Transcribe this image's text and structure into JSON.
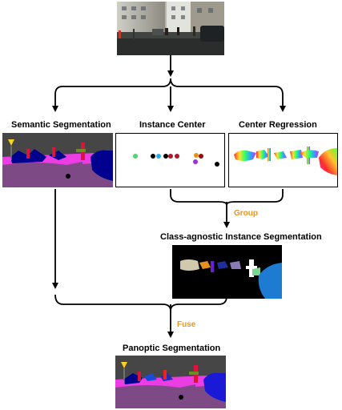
{
  "labels": {
    "semantic": "Semantic Segmentation",
    "instance_center": "Instance Center",
    "center_regression": "Center Regression",
    "class_agnostic": "Class-agnostic Instance Segmentation",
    "panoptic": "Panoptic Segmentation"
  },
  "operations": {
    "group": "Group",
    "fuse": "Fuse"
  },
  "colors": {
    "arrow": "#000000",
    "operation_text": "#e8961e",
    "road": "#7d4a86",
    "sidewalk": "#f23be8",
    "sky": "#4682b4",
    "building": "#464646",
    "vegetation": "#6b8e23",
    "car": "#00008e",
    "person": "#dc143c"
  },
  "instance_center_dots": [
    "#4fd66b",
    "#000000",
    "#2ab0e8",
    "#000000",
    "#b0182a",
    "#b0182a",
    "#e6911e",
    "#9b0d0d",
    "#a12ee0",
    "#000000"
  ]
}
